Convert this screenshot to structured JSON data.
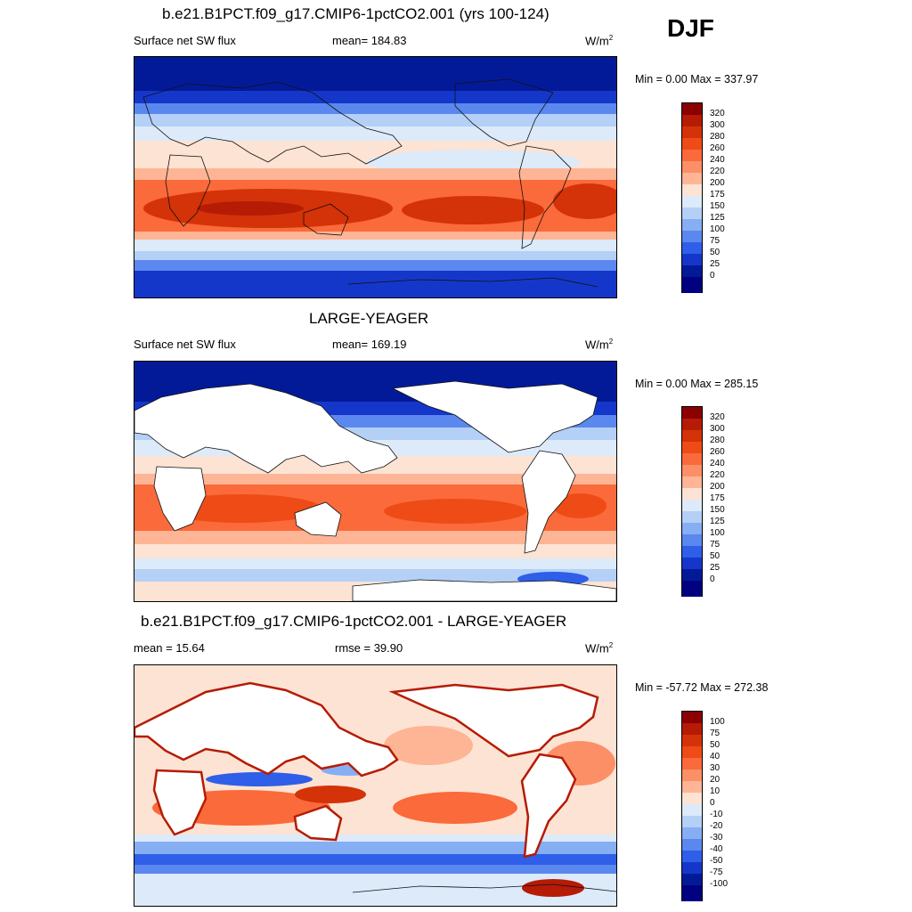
{
  "season": "DJF",
  "panels": [
    {
      "title": "b.e21.B1PCT.f09_g17.CMIP6-1pctCO2.001 (yrs 100-124)",
      "variable": "Surface net SW flux",
      "stat": "mean= 184.83",
      "units": "W/m",
      "units_sup": "2",
      "minmax": "Min =   0.00 Max = 337.97",
      "levels": [
        "320",
        "300",
        "280",
        "260",
        "240",
        "220",
        "200",
        "175",
        "150",
        "125",
        "100",
        "75",
        "50",
        "25",
        "0"
      ],
      "colors": [
        "#8b0000",
        "#b51b05",
        "#d43208",
        "#ee4b16",
        "#fb6a3a",
        "#fd8f67",
        "#fdb595",
        "#fde3d3",
        "#dceaf9",
        "#b4d0f6",
        "#86aef2",
        "#5a88ee",
        "#2f5ee8",
        "#1537c9",
        "#031a98",
        "#000080"
      ]
    },
    {
      "title": "LARGE-YEAGER",
      "variable": "Surface net SW flux",
      "stat": "mean= 169.19",
      "units": "W/m",
      "units_sup": "2",
      "minmax": "Min =   0.00 Max = 285.15",
      "levels": [
        "320",
        "300",
        "280",
        "260",
        "240",
        "220",
        "200",
        "175",
        "150",
        "125",
        "100",
        "75",
        "50",
        "25",
        "0"
      ],
      "colors": [
        "#8b0000",
        "#b51b05",
        "#d43208",
        "#ee4b16",
        "#fb6a3a",
        "#fd8f67",
        "#fdb595",
        "#fde3d3",
        "#dceaf9",
        "#b4d0f6",
        "#86aef2",
        "#5a88ee",
        "#2f5ee8",
        "#1537c9",
        "#031a98",
        "#000080"
      ]
    },
    {
      "title": "b.e21.B1PCT.f09_g17.CMIP6-1pctCO2.001 - LARGE-YEAGER",
      "variable": "mean =  15.64",
      "stat": "rmse =  39.90",
      "units": "W/m",
      "units_sup": "2",
      "minmax": "Min = -57.72 Max = 272.38",
      "levels": [
        "100",
        "75",
        "50",
        "40",
        "30",
        "20",
        "10",
        "0",
        "-10",
        "-20",
        "-30",
        "-40",
        "-50",
        "-75",
        "-100"
      ],
      "colors": [
        "#8b0000",
        "#b51b05",
        "#d43208",
        "#ee4b16",
        "#fb6a3a",
        "#fd8f67",
        "#fdb595",
        "#fde3d3",
        "#dceaf9",
        "#b4d0f6",
        "#86aef2",
        "#5a88ee",
        "#2f5ee8",
        "#1537c9",
        "#031a98",
        "#000080"
      ]
    }
  ]
}
